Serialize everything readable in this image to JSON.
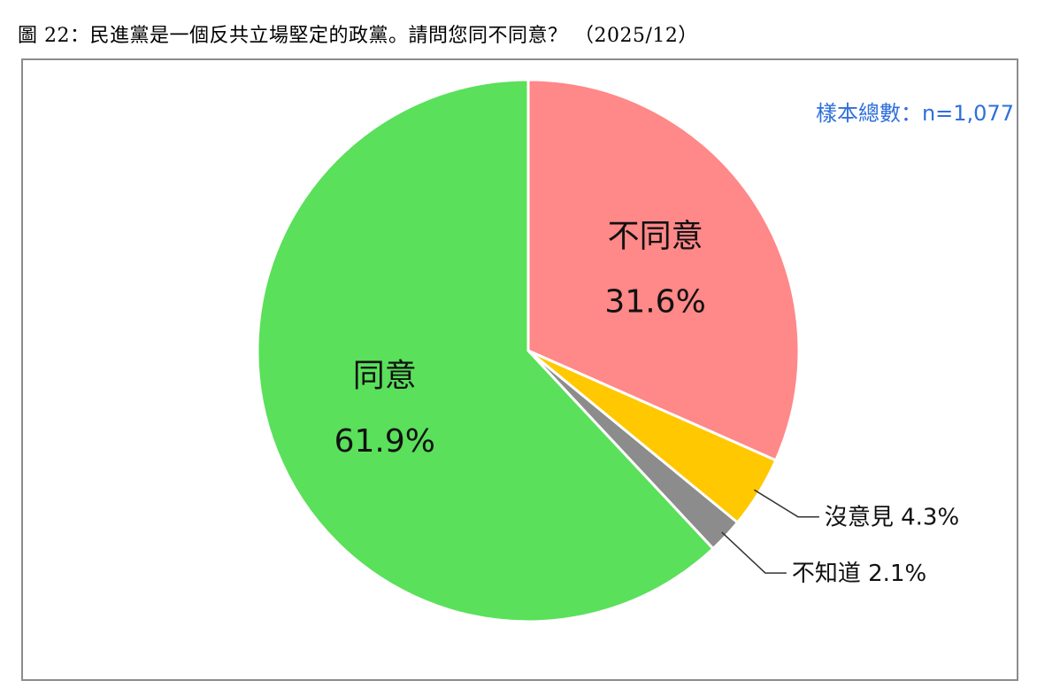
{
  "figure_title": "圖 22：民進黨是一個反共立場堅定的政黨。請問您同不同意？ （2025/12）",
  "sample_note": "樣本總數：n=1,077",
  "chart_data": {
    "type": "pie",
    "title": "圖 22：民進黨是一個反共立場堅定的政黨。請問您同不同意？ （2025/12）",
    "unit": "%",
    "slices": [
      {
        "label": "不同意",
        "value": 31.6,
        "display": "31.6%",
        "color": "#ff8888"
      },
      {
        "label": "沒意見",
        "value": 4.3,
        "display": "4.3%",
        "color": "#ffc800"
      },
      {
        "label": "不知道",
        "value": 2.1,
        "display": "2.1%",
        "color": "#8c8c8c"
      },
      {
        "label": "同意",
        "value": 61.9,
        "display": "61.9%",
        "color": "#5ae05a"
      }
    ]
  }
}
